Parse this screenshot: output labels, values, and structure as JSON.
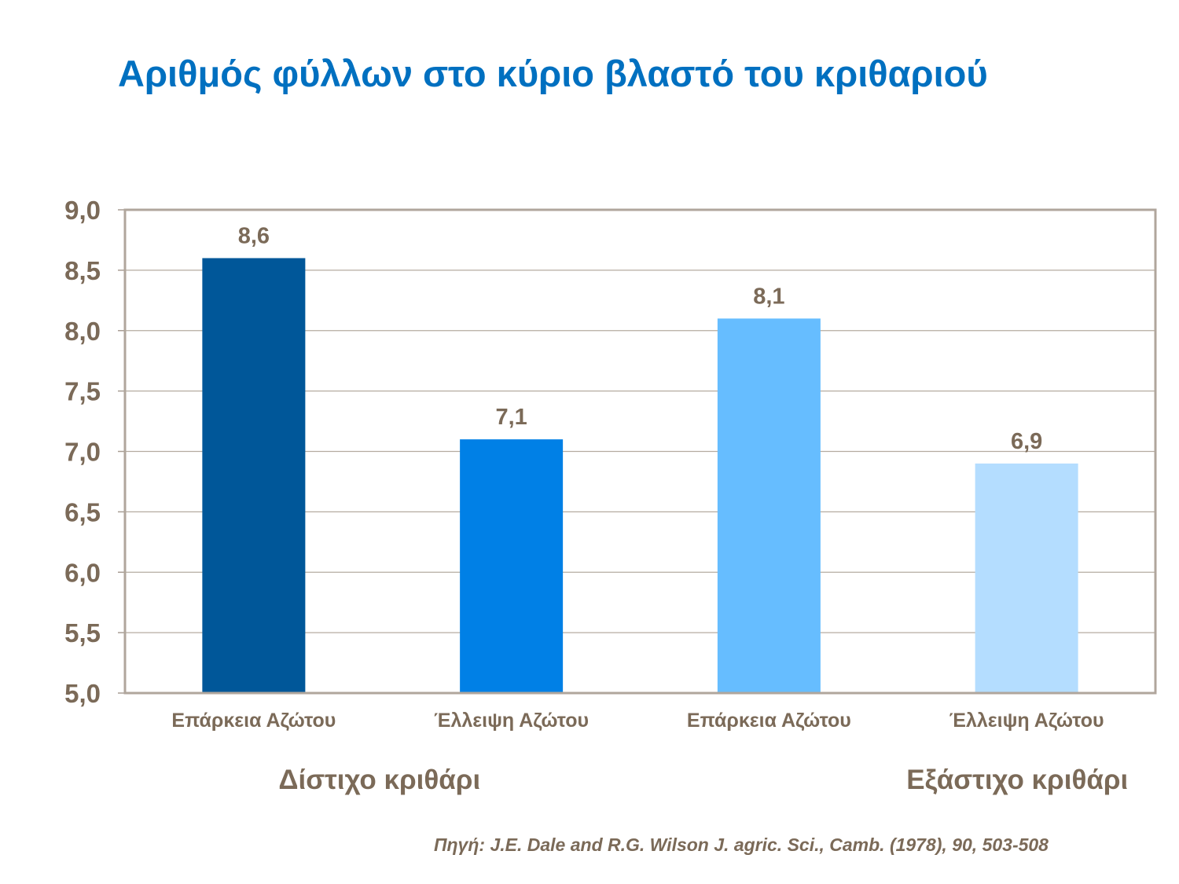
{
  "chart_data": {
    "type": "bar",
    "title": "Αριθμός φύλλων στο κύριο βλαστό του κριθαριού",
    "categories": [
      "Επάρκεια Αζώτου",
      "Έλλειψη Αζώτου",
      "Επάρκεια Αζώτου",
      "Έλλειψη Αζώτου"
    ],
    "groups": [
      {
        "label": "Δίστιχο  κριθάρι",
        "categories": [
          0,
          1
        ]
      },
      {
        "label": "Εξάστιχο κριθάρι",
        "categories": [
          2,
          3
        ]
      }
    ],
    "values": [
      8.6,
      7.1,
      8.1,
      6.9
    ],
    "value_labels": [
      "8,6",
      "7,1",
      "8,1",
      "6,9"
    ],
    "bar_colors": [
      "#005799",
      "#0080E6",
      "#66BDFF",
      "#B4DDFF"
    ],
    "ylim": [
      5.0,
      9.0
    ],
    "yticks": [
      "5,0",
      "5,5",
      "6,0",
      "6,5",
      "7,0",
      "7,5",
      "8,0",
      "8,5",
      "9,0"
    ],
    "grid": true,
    "xlabel": "",
    "ylabel": ""
  },
  "source": "Πηγή: J.E. Dale and R.G. Wilson J. agric. Sci., Camb. (1978), 90, 503-508"
}
